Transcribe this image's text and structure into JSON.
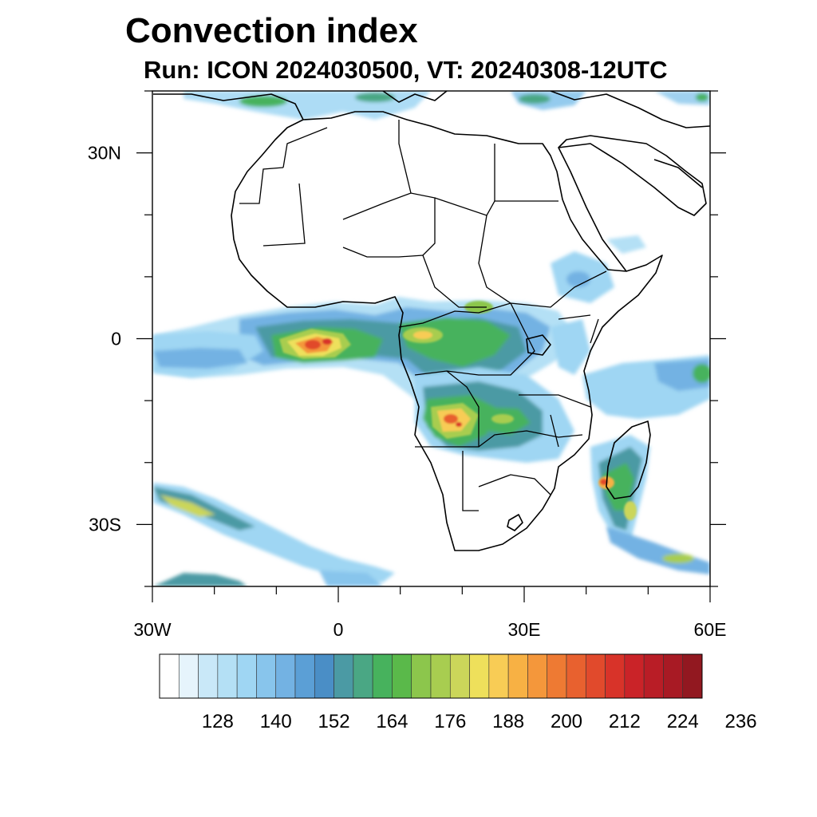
{
  "title": "Convection index",
  "subtitle": "Run: ICON 2024030500,  VT: 20240308-12UTC",
  "map": {
    "lon_range": [
      -30,
      60
    ],
    "lat_range": [
      -40,
      40
    ],
    "x_tick_labels": [
      {
        "lon": -30,
        "label": "30W"
      },
      {
        "lon": 0,
        "label": "0"
      },
      {
        "lon": 30,
        "label": "30E"
      },
      {
        "lon": 60,
        "label": "60E"
      }
    ],
    "y_tick_labels": [
      {
        "lat": 30,
        "label": "30N"
      },
      {
        "lat": 0,
        "label": "0"
      },
      {
        "lat": -30,
        "label": "30S"
      }
    ]
  },
  "colorbar": {
    "colors": [
      "#ffffff",
      "#e6f4fc",
      "#c9e8f8",
      "#b4e0f5",
      "#9fd6f3",
      "#88c5ec",
      "#73b2e3",
      "#5b9fd6",
      "#4a8ec6",
      "#4b9aa4",
      "#4aa784",
      "#47b25d",
      "#5ab94a",
      "#8cc64c",
      "#a8cd50",
      "#cbd65a",
      "#eee05b",
      "#f8cc55",
      "#f7b144",
      "#f4973b",
      "#ee7a33",
      "#e8612f",
      "#e14a2c",
      "#d83329",
      "#ca2328",
      "#b91d26",
      "#a81a24",
      "#921820"
    ],
    "labels": [
      "128",
      "140",
      "152",
      "164",
      "176",
      "188",
      "200",
      "212",
      "224",
      "236"
    ]
  }
}
